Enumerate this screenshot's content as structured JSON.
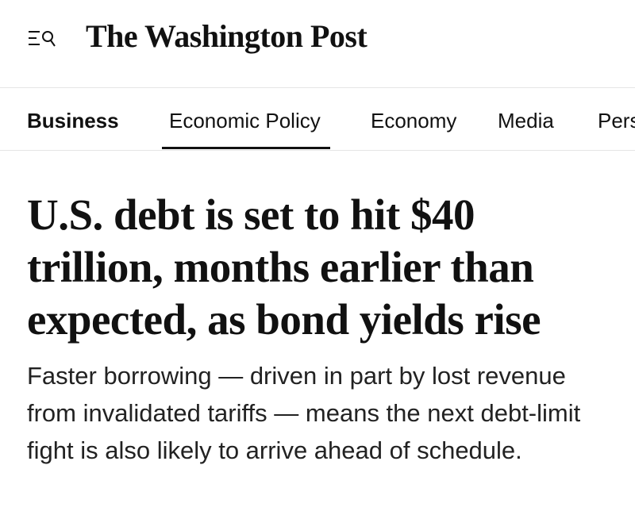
{
  "header": {
    "logo": "The Washington Post"
  },
  "nav": {
    "items": [
      "Business",
      "Economic Policy",
      "Economy",
      "Media",
      "Pers"
    ]
  },
  "article": {
    "headline": "U.S. debt is set to hit $40 trillion, months earlier than expected, as bond yields rise",
    "subheadline": "Faster borrowing — driven in part by lost revenue from invalidated tariffs — means the next debt-limit fight is also likely to arrive ahead of schedule."
  }
}
